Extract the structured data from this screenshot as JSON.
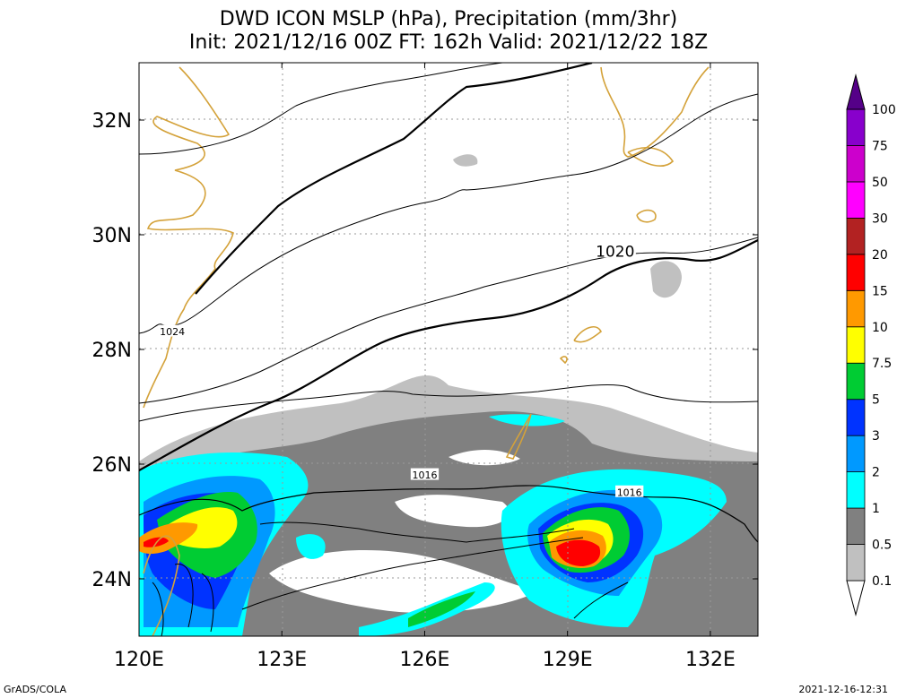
{
  "title": {
    "line1": "DWD ICON MSLP (hPa), Precipitation (mm/3hr)",
    "line2": "Init: 2021/12/16 00Z  FT: 162h  Valid: 2021/12/22 18Z"
  },
  "map": {
    "lon_range": [
      120,
      133
    ],
    "lat_range": [
      23,
      33
    ],
    "lon_ticks": [
      120,
      123,
      126,
      129,
      132
    ],
    "lat_ticks": [
      24,
      26,
      28,
      30,
      32
    ],
    "lon_tick_labels": [
      "120E",
      "123E",
      "126E",
      "129E",
      "132E"
    ],
    "lat_tick_labels": [
      "24N",
      "26N",
      "28N",
      "30N",
      "32N"
    ],
    "isobar_labels": [
      {
        "text": "1024",
        "lon": 120.7,
        "lat": 28.3
      },
      {
        "text": "1020",
        "lon": 130.0,
        "lat": 29.7
      },
      {
        "text": "1016",
        "lon": 126.0,
        "lat": 25.8
      },
      {
        "text": "1016",
        "lon": 130.3,
        "lat": 25.5
      }
    ],
    "colors": {
      "coastline": "#d4a23a",
      "isobar": "#000000",
      "grid": "#9a9a9a"
    }
  },
  "colorbar": {
    "levels": [
      "0.1",
      "0.5",
      "1",
      "2",
      "3",
      "5",
      "7.5",
      "10",
      "15",
      "20",
      "30",
      "50",
      "75",
      "100"
    ],
    "colors": [
      "#ffffff",
      "#c0c0c0",
      "#808080",
      "#00ffff",
      "#0099ff",
      "#0033ff",
      "#00cc33",
      "#ffff00",
      "#ff9900",
      "#ff0000",
      "#b22222",
      "#ff00ff",
      "#cc00cc",
      "#8800cc",
      "#550088"
    ]
  },
  "footer": {
    "left": "GrADS/COLA",
    "right": "2021-12-16-12:31"
  }
}
